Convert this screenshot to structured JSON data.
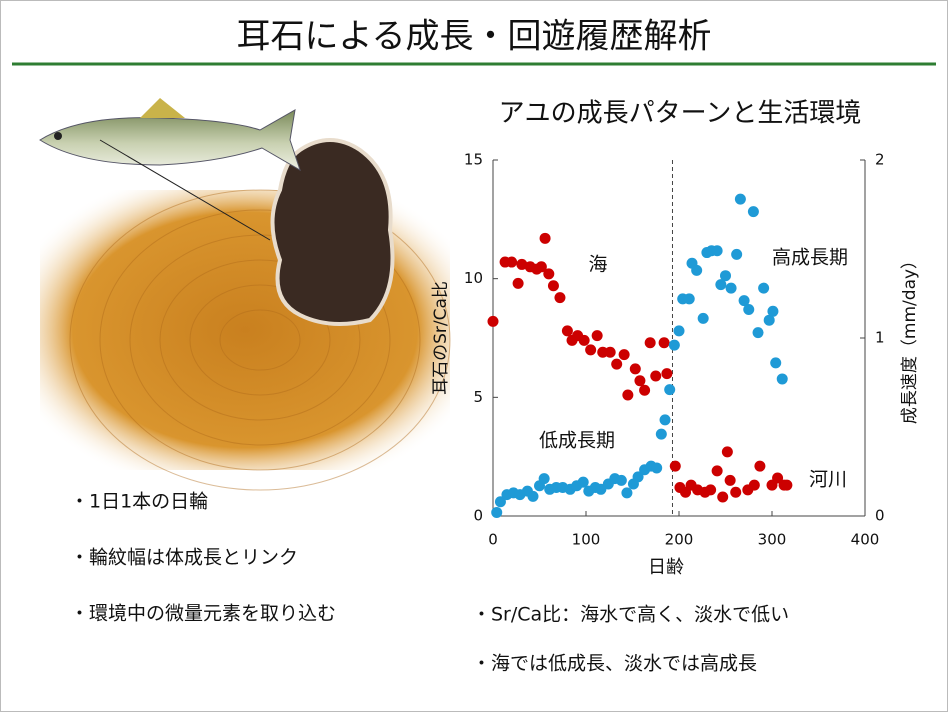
{
  "slide": {
    "title": "耳石による成長・回遊履歴解析",
    "bullets_left": [
      "・1日1本の日輪",
      "・輪紋幅は体成長とリンク",
      "・環境中の微量元素を取り込む"
    ],
    "bullets_right": [
      "・Sr/Ca比：海水で高く、淡水で低い",
      "・海では低成長、淡水では高成長"
    ]
  },
  "chart_data": {
    "type": "scatter",
    "title": "アユの成長パターンと生活環境",
    "xlabel": "日齢",
    "ylabel": "耳石のSr/Ca比",
    "y2label": "成長速度（mm/day）",
    "xlim": [
      0,
      400
    ],
    "xticks": [
      0,
      100,
      200,
      300,
      400
    ],
    "ylim": [
      0,
      15
    ],
    "yticks": [
      0,
      5,
      10,
      15
    ],
    "y2lim": [
      0,
      2
    ],
    "y2ticks": [
      0,
      1,
      2
    ],
    "vline": 193,
    "annotations": [
      {
        "text": "海",
        "color": "#c00000"
      },
      {
        "text": "河川",
        "color": "#c00000"
      },
      {
        "text": "高成長期",
        "color": "#1f9ad6"
      },
      {
        "text": "低成長期",
        "color": "#1f9ad6"
      }
    ],
    "series": [
      {
        "color": "#cc0000",
        "axis": "y",
        "x": [
          0,
          13,
          20,
          27,
          31,
          40,
          47,
          52,
          56,
          60,
          65,
          72,
          80,
          85,
          91,
          98,
          105,
          112,
          118,
          126,
          133,
          141,
          145,
          153,
          158,
          163,
          169,
          175,
          184,
          187,
          196,
          201,
          207,
          213,
          220,
          228,
          234,
          241,
          247,
          252,
          255,
          261,
          274,
          281,
          287,
          300,
          306,
          313,
          316
        ],
        "values": [
          8.2,
          10.7,
          10.7,
          9.8,
          10.6,
          10.5,
          10.4,
          10.5,
          11.7,
          10.2,
          9.7,
          9.2,
          7.8,
          7.4,
          7.6,
          7.4,
          7.0,
          7.6,
          6.9,
          6.9,
          6.4,
          6.8,
          5.1,
          6.2,
          5.7,
          5.3,
          7.3,
          5.9,
          7.3,
          6.0,
          2.1,
          1.2,
          1.0,
          1.3,
          1.1,
          1.0,
          1.1,
          1.9,
          0.8,
          2.7,
          1.5,
          1.0,
          1.1,
          1.3,
          2.1,
          1.3,
          1.6,
          1.3,
          1.3
        ]
      },
      {
        "color": "#1f9ad6",
        "axis": "y2",
        "x": [
          4,
          8,
          15,
          22,
          29,
          37,
          43,
          50,
          55,
          61,
          68,
          75,
          83,
          90,
          97,
          103,
          110,
          116,
          124,
          131,
          138,
          144,
          151,
          156,
          163,
          170,
          176,
          181,
          185,
          190,
          195,
          200,
          204,
          211,
          214,
          219,
          226,
          230,
          235,
          241,
          245,
          250,
          256,
          262,
          266,
          270,
          275,
          280,
          285,
          291,
          297,
          301,
          304,
          311
        ],
        "values": [
          0.02,
          0.08,
          0.12,
          0.13,
          0.12,
          0.14,
          0.11,
          0.17,
          0.21,
          0.15,
          0.16,
          0.16,
          0.15,
          0.17,
          0.19,
          0.14,
          0.16,
          0.15,
          0.18,
          0.21,
          0.2,
          0.13,
          0.18,
          0.22,
          0.26,
          0.28,
          0.27,
          0.46,
          0.54,
          0.71,
          0.96,
          1.04,
          1.22,
          1.22,
          1.42,
          1.38,
          1.11,
          1.48,
          1.49,
          1.49,
          1.3,
          1.35,
          1.28,
          1.47,
          1.78,
          1.21,
          1.16,
          1.71,
          1.03,
          1.28,
          1.1,
          1.15,
          0.86,
          0.77
        ]
      }
    ]
  }
}
